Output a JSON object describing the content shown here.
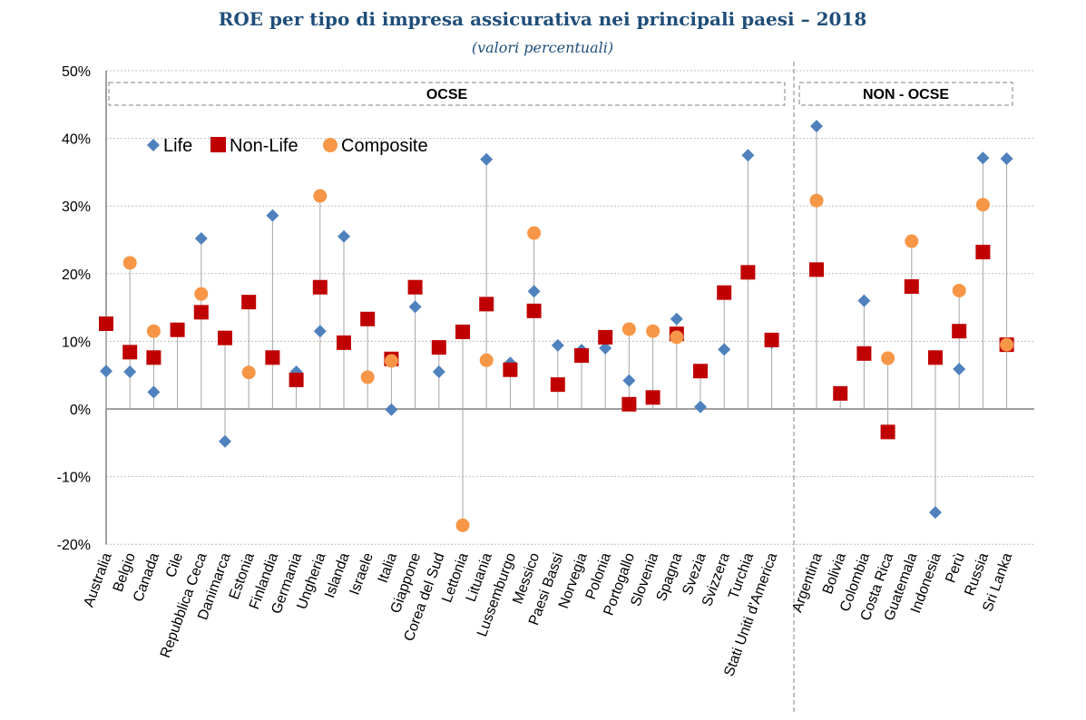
{
  "chart_data": {
    "type": "scatter",
    "title": "ROE per tipo di impresa assicurativa nei principali paesi – 2018",
    "subtitle": "(valori percentuali)",
    "ylim": [
      -20,
      50
    ],
    "yticks": [
      "-20%",
      "-10%",
      "0%",
      "10%",
      "20%",
      "30%",
      "40%",
      "50%"
    ],
    "ytick_values": [
      -20,
      -10,
      0,
      10,
      20,
      30,
      40,
      50
    ],
    "legend_position": "top-left",
    "colors": {
      "Life": "#4f81bd",
      "Non-Life": "#c00000",
      "Composite": "#f79646"
    },
    "groups": [
      {
        "label": "OCSE",
        "count": 29
      },
      {
        "label": "NON - OCSE",
        "count": 9
      }
    ],
    "categories": [
      "Australia",
      "Belgio",
      "Canada",
      "Cile",
      "Repubblica Ceca",
      "Danimarca",
      "Estonia",
      "Finlandia",
      "Germania",
      "Ungheria",
      "Islanda",
      "Israele",
      "Italia",
      "Giappone",
      "Corea del Sud",
      "Lettonia",
      "Lituania",
      "Lussemburgo",
      "Messico",
      "Paesi Bassi",
      "Norvegia",
      "Polonia",
      "Portogallo",
      "Slovenia",
      "Spagna",
      "Svezia",
      "Svizzera",
      "Turchia",
      "Stati Uniti d'America",
      "Argentina",
      "Bolivia",
      "Colombia",
      "Costa Rica",
      "Guatemala",
      "Indonesia",
      "Perù",
      "Russia",
      "Sri Lanka"
    ],
    "series": [
      {
        "name": "Life",
        "marker": "diamond",
        "values": [
          5.6,
          5.5,
          2.5,
          null,
          25.2,
          -4.8,
          null,
          28.6,
          5.5,
          11.5,
          25.5,
          null,
          -0.1,
          15.1,
          5.5,
          null,
          36.9,
          6.8,
          17.4,
          9.4,
          8.7,
          9.0,
          4.2,
          null,
          13.3,
          0.3,
          8.8,
          37.5,
          9.8,
          41.8,
          null,
          16.0,
          null,
          null,
          -15.3,
          5.9,
          37.1,
          37.0
        ]
      },
      {
        "name": "Non-Life",
        "marker": "square",
        "values": [
          12.6,
          8.4,
          7.6,
          11.7,
          14.3,
          10.5,
          15.8,
          7.6,
          4.3,
          18.0,
          9.8,
          13.3,
          7.4,
          18.0,
          9.1,
          11.4,
          15.5,
          5.8,
          14.5,
          3.6,
          7.9,
          10.6,
          0.7,
          1.7,
          11.1,
          5.6,
          17.2,
          20.2,
          10.2,
          20.6,
          2.3,
          8.2,
          -3.4,
          18.1,
          7.6,
          11.5,
          23.2,
          9.5
        ]
      },
      {
        "name": "Composite",
        "marker": "circle",
        "values": [
          null,
          21.6,
          11.5,
          null,
          17.0,
          null,
          5.4,
          null,
          null,
          31.5,
          null,
          4.7,
          7.1,
          null,
          null,
          -17.2,
          7.2,
          null,
          26.0,
          null,
          null,
          null,
          11.8,
          11.5,
          10.6,
          null,
          null,
          null,
          null,
          30.8,
          null,
          null,
          7.5,
          24.8,
          null,
          17.5,
          30.2,
          9.5
        ]
      }
    ]
  }
}
